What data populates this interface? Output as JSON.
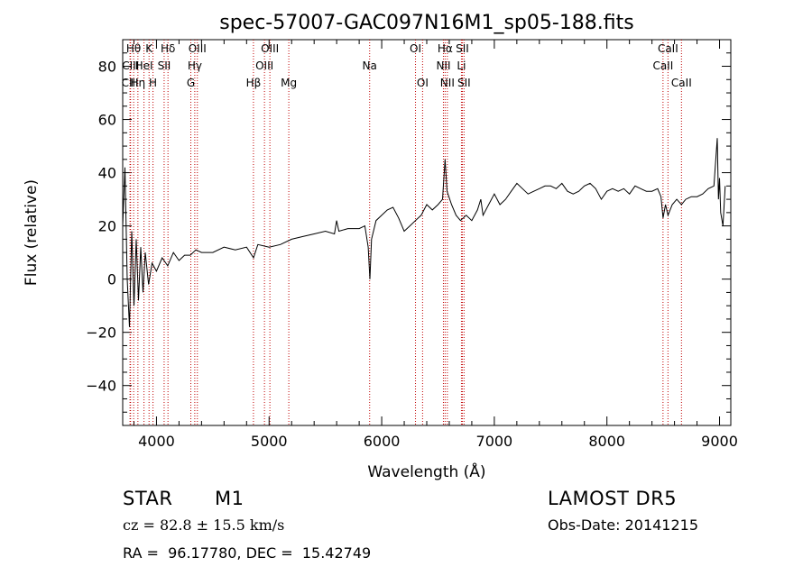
{
  "chart_data": {
    "type": "line",
    "title": "spec-57007-GAC097N16M1_sp05-188.fits",
    "xlabel": "Wavelength (Å)",
    "ylabel": "Flux (relative)",
    "xlim": [
      3700,
      9100
    ],
    "ylim": [
      -55,
      90
    ],
    "xticks": [
      4000,
      5000,
      6000,
      7000,
      8000,
      9000
    ],
    "yticks": [
      -40,
      -20,
      0,
      20,
      40,
      60,
      80
    ],
    "grid": false,
    "series": [
      {
        "x": [
          3700,
          3720,
          3740,
          3760,
          3780,
          3800,
          3820,
          3840,
          3860,
          3880,
          3900,
          3930,
          3960,
          4000,
          4050,
          4100,
          4150,
          4200,
          4250,
          4300,
          4350,
          4400,
          4500,
          4600,
          4700,
          4800,
          4862,
          4900,
          5000,
          5100,
          5200,
          5300,
          5400,
          5500,
          5580,
          5600,
          5620,
          5700,
          5800,
          5850,
          5880,
          5895,
          5910,
          5950,
          6000,
          6050,
          6100,
          6150,
          6200,
          6250,
          6300,
          6350,
          6400,
          6450,
          6500,
          6540,
          6563,
          6580,
          6620,
          6660,
          6700,
          6750,
          6800,
          6850,
          6880,
          6900,
          6950,
          7000,
          7050,
          7100,
          7150,
          7200,
          7250,
          7300,
          7350,
          7400,
          7450,
          7500,
          7550,
          7600,
          7650,
          7700,
          7750,
          7800,
          7850,
          7900,
          7950,
          8000,
          8050,
          8100,
          8150,
          8200,
          8250,
          8300,
          8350,
          8400,
          8450,
          8480,
          8498,
          8520,
          8542,
          8580,
          8620,
          8662,
          8700,
          8750,
          8800,
          8850,
          8900,
          8950,
          8980,
          8990,
          9000,
          9010,
          9030,
          9050
        ],
        "y": [
          20,
          42,
          0,
          -18,
          18,
          -10,
          15,
          -8,
          12,
          -5,
          10,
          -2,
          6,
          3,
          8,
          5,
          10,
          7,
          9,
          9,
          11,
          10,
          10,
          12,
          11,
          12,
          8,
          13,
          12,
          13,
          15,
          16,
          17,
          18,
          17,
          22,
          18,
          19,
          19,
          20,
          12,
          0,
          15,
          22,
          24,
          26,
          27,
          23,
          18,
          20,
          22,
          24,
          28,
          26,
          28,
          30,
          45,
          33,
          28,
          24,
          22,
          24,
          22,
          26,
          30,
          24,
          28,
          32,
          28,
          30,
          33,
          36,
          34,
          32,
          33,
          34,
          35,
          35,
          34,
          36,
          33,
          32,
          33,
          35,
          36,
          34,
          30,
          33,
          34,
          33,
          34,
          32,
          35,
          34,
          33,
          33,
          34,
          31,
          23,
          28,
          24,
          28,
          30,
          28,
          30,
          31,
          31,
          32,
          34,
          35,
          53,
          30,
          38,
          25,
          20,
          35
        ]
      }
    ],
    "line_ids": [
      {
        "label": "Hθ",
        "x": 3797,
        "row": 1
      },
      {
        "label": "CIII",
        "x": 3770,
        "row": 2
      },
      {
        "label": "CIII",
        "x": 3765,
        "row": 3
      },
      {
        "label": "Hη",
        "x": 3835,
        "row": 3
      },
      {
        "label": "HeI",
        "x": 3889,
        "row": 2
      },
      {
        "label": "K",
        "x": 3934,
        "row": 1
      },
      {
        "label": "H",
        "x": 3969,
        "row": 3
      },
      {
        "label": "SII",
        "x": 4068,
        "row": 2
      },
      {
        "label": "Hδ",
        "x": 4102,
        "row": 1
      },
      {
        "label": "OIII",
        "x": 4363,
        "row": 1
      },
      {
        "label": "Hγ",
        "x": 4340,
        "row": 2
      },
      {
        "label": "G",
        "x": 4305,
        "row": 3
      },
      {
        "label": "Hβ",
        "x": 4861,
        "row": 3
      },
      {
        "label": "OIII",
        "x": 5007,
        "row": 1
      },
      {
        "label": "OIII",
        "x": 4959,
        "row": 2
      },
      {
        "label": "Mg",
        "x": 5175,
        "row": 3
      },
      {
        "label": "Na",
        "x": 5893,
        "row": 2
      },
      {
        "label": "OI",
        "x": 6300,
        "row": 1
      },
      {
        "label": "OI",
        "x": 6363,
        "row": 3
      },
      {
        "label": "Hα",
        "x": 6563,
        "row": 1
      },
      {
        "label": "SII",
        "x": 6716,
        "row": 1
      },
      {
        "label": "NII",
        "x": 6548,
        "row": 2
      },
      {
        "label": "Li",
        "x": 6708,
        "row": 2
      },
      {
        "label": "NII",
        "x": 6583,
        "row": 3
      },
      {
        "label": "SII",
        "x": 6731,
        "row": 3
      },
      {
        "label": "CaII",
        "x": 8542,
        "row": 1
      },
      {
        "label": "CaII",
        "x": 8498,
        "row": 2
      },
      {
        "label": "CaII",
        "x": 8662,
        "row": 3
      }
    ]
  },
  "info": {
    "object_class": "STAR",
    "subclass": "M1",
    "survey": "LAMOST DR5",
    "redshift": "cz = 82.8 ± 15.5 km/s",
    "obs_date": "Obs-Date: 20141215",
    "coords": "RA =  96.17780, DEC =  15.42749"
  }
}
